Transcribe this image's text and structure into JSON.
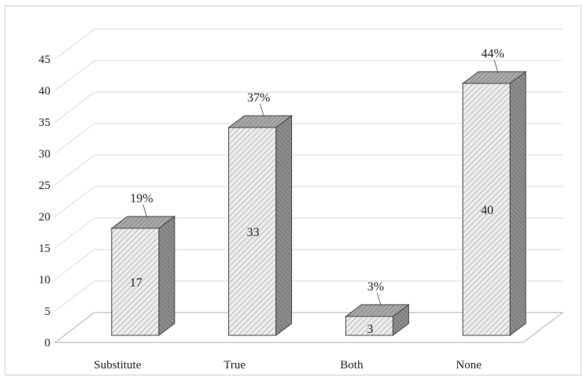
{
  "chart_data": {
    "type": "bar",
    "categories": [
      "Substitute",
      "True",
      "Both",
      "None"
    ],
    "values": [
      17,
      33,
      3,
      40
    ],
    "percent_labels": [
      "19%",
      "37%",
      "3%",
      "44%"
    ],
    "ylim": [
      0,
      45
    ],
    "y_ticks": [
      0,
      5,
      10,
      15,
      20,
      25,
      30,
      35,
      40,
      45
    ],
    "grid": true,
    "style": "3d-column",
    "colors": {
      "front_fill": "#ececec",
      "hatch": "#9a9a9a",
      "side_fill": "#8c8c8c",
      "top_fill": "#a8a8a8",
      "grid": "#d9d9d9"
    }
  }
}
